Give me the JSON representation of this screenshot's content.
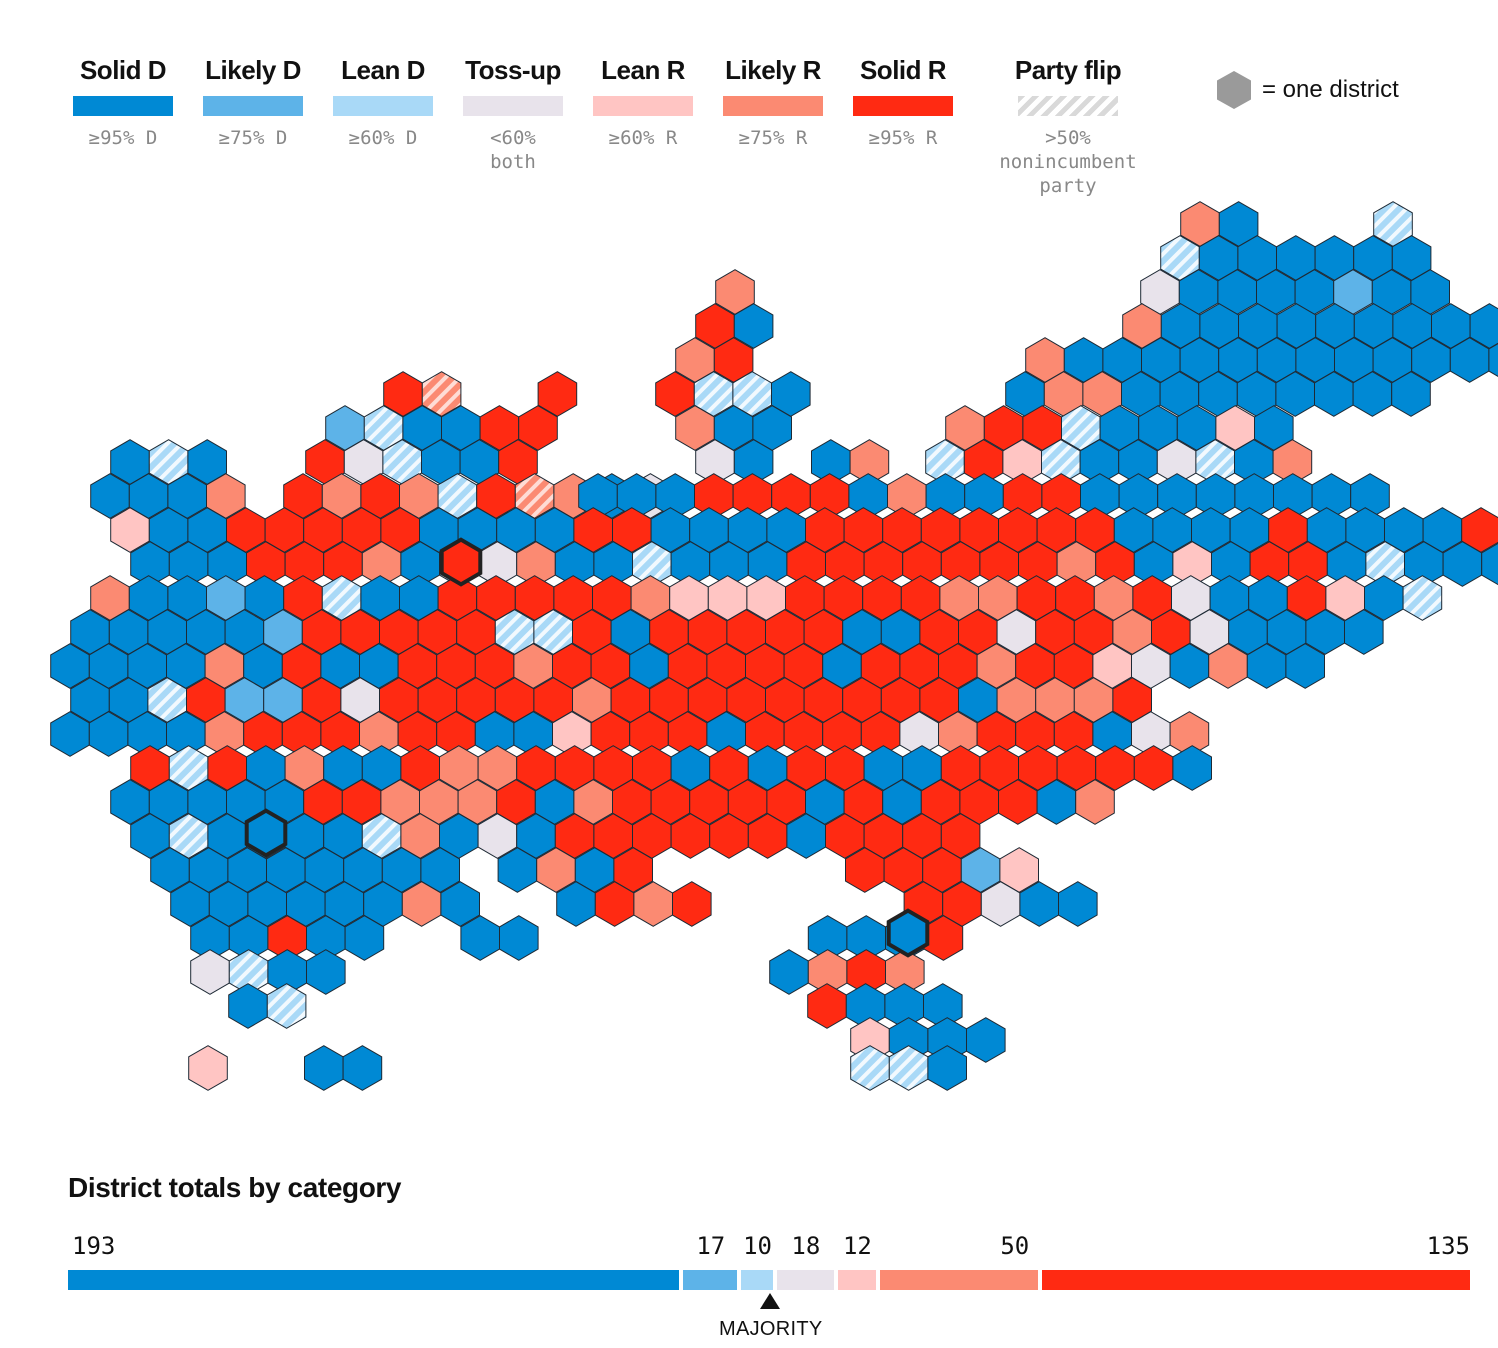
{
  "legend": [
    {
      "title": "Solid D",
      "range": "≥95% D",
      "color": "#0089D4",
      "pattern": "solid"
    },
    {
      "title": "Likely D",
      "range": "≥75% D",
      "color": "#5DB3E8",
      "pattern": "solid"
    },
    {
      "title": "Lean D",
      "range": "≥60% D",
      "color": "#A9D9F7",
      "pattern": "solid"
    },
    {
      "title": "Toss-up",
      "range": "<60%\nboth",
      "color": "#E8E3EB",
      "pattern": "solid"
    },
    {
      "title": "Lean R",
      "range": "≥60% R",
      "color": "#FFC5C3",
      "pattern": "solid"
    },
    {
      "title": "Likely R",
      "range": "≥75% R",
      "color": "#FB8A72",
      "pattern": "solid"
    },
    {
      "title": "Solid R",
      "range": "≥95% R",
      "color": "#FF2A12",
      "pattern": "solid"
    },
    {
      "title": "Party flip",
      "range": ">50%\nnonincumbent\nparty",
      "color": "#d9d9d9",
      "pattern": "hatch"
    }
  ],
  "one_district_label": "= one district",
  "totals": {
    "title": "District totals by category",
    "majority_label": "MAJORITY",
    "categories": [
      {
        "label": "193",
        "count": 193,
        "color": "#0089D4"
      },
      {
        "label": "17",
        "count": 17,
        "color": "#5DB3E8"
      },
      {
        "label": "10",
        "count": 10,
        "color": "#A9D9F7"
      },
      {
        "label": "18",
        "count": 18,
        "color": "#E8E3EB"
      },
      {
        "label": "12",
        "count": 12,
        "color": "#FFC5C3"
      },
      {
        "label": "50",
        "count": 50,
        "color": "#FB8A72"
      },
      {
        "label": "135",
        "count": 135,
        "color": "#FF2A12"
      }
    ]
  }
}
